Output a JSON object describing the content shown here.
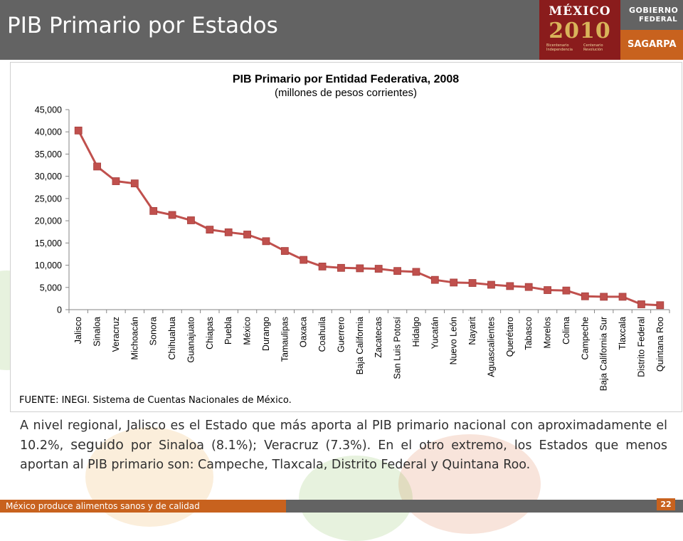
{
  "slide": {
    "title": "PIB Primario por Estados",
    "logo_mexico_line1": "MÉXICO",
    "logo_mexico_line2": "2010",
    "logo_mexico_sub_left": "Bicentenario Independencia",
    "logo_mexico_sub_right": "Centenario Revolución",
    "logo_gobierno_line1": "GOBIERNO",
    "logo_gobierno_line2": "FEDERAL",
    "logo_sagarpa": "SAGARPA",
    "body_part1": "A nivel regional, Jalisco es el Estado que más aporta al PIB primario nacional con aproximadamente el 10.2%, ",
    "body_part2": "seguido",
    "body_part3": " por Sinaloa (8.1%); Veracruz (7.3%).  En el otro extremo, los Estados que menos aportan al PIB primario son: Campeche, Tlaxcala, Distrito Federal y Quintana Roo.",
    "footer_text": "México produce alimentos sanos y de calidad",
    "page_number": "22",
    "colors": {
      "header_gray": "#636363",
      "accent_orange": "#c8621e",
      "series_red": "#c0504d",
      "logo_maroon": "#8a1c1c"
    }
  },
  "chart_data": {
    "type": "line",
    "title": "PIB Primario por Entidad Federativa, 2008",
    "subtitle": "(millones de pesos corrientes)",
    "source": "FUENTE: INEGI. Sistema de Cuentas Nacionales de México.",
    "xlabel": "",
    "ylabel": "",
    "ylim": [
      0,
      45000
    ],
    "yticks": [
      "0",
      "5,000",
      "10,000",
      "15,000",
      "20,000",
      "25,000",
      "30,000",
      "35,000",
      "40,000",
      "45,000"
    ],
    "grid": false,
    "legend": "none",
    "categories": [
      "Jalisco",
      "Sinaloa",
      "Veracruz",
      "Michoacán",
      "Sonora",
      "Chihuahua",
      "Guanajuato",
      "Chiapas",
      "Puebla",
      "México",
      "Durango",
      "Tamaulipas",
      "Oaxaca",
      "Coahuila",
      "Guerrero",
      "Baja California",
      "Zacatecas",
      "San Luis Potosí",
      "Hidalgo",
      "Yucatán",
      "Nuevo León",
      "Nayarit",
      "Aguascalientes",
      "Querétaro",
      "Tabasco",
      "Morelos",
      "Colima",
      "Campeche",
      "Baja California  Sur",
      "Tlaxcala",
      "Distrito Federal",
      "Quintana  Roo"
    ],
    "series": [
      {
        "values": [
          40300,
          32200,
          28900,
          28400,
          22200,
          21300,
          20100,
          18000,
          17400,
          16900,
          15400,
          13200,
          11200,
          9700,
          9400,
          9300,
          9200,
          8700,
          8500,
          6700,
          6100,
          6000,
          5600,
          5300,
          5100,
          4400,
          4300,
          3000,
          2900,
          2900,
          1200,
          1000
        ],
        "color": "#c0504d"
      }
    ]
  }
}
